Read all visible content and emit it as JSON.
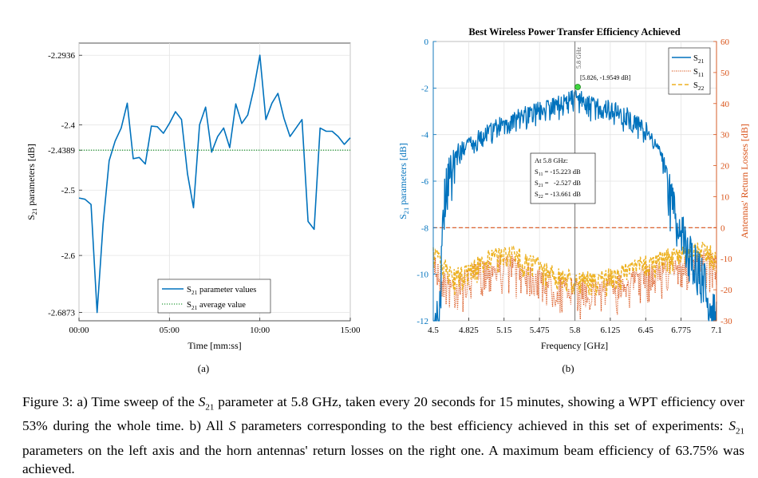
{
  "chart_data": [
    {
      "type": "line",
      "panel_label": "(a)",
      "title": "",
      "xlabel": "Time [mm:ss]",
      "ylabel_main": "S",
      "ylabel_sub": "21",
      "ylabel_tail": " parameters [dB]",
      "xlim": [
        0,
        15
      ],
      "ylim": [
        -2.6873,
        -2.2936
      ],
      "x_ticks": [
        {
          "v": 0,
          "label": "00:00"
        },
        {
          "v": 5,
          "label": "05:00"
        },
        {
          "v": 10,
          "label": "10:00"
        },
        {
          "v": 15,
          "label": "15:00"
        }
      ],
      "y_ticks": [
        {
          "v": -2.2936,
          "label": "-2.2936"
        },
        {
          "v": -2.4,
          "label": "-2.4"
        },
        {
          "v": -2.4389,
          "label": "-2.4389"
        },
        {
          "v": -2.5,
          "label": "-2.5"
        },
        {
          "v": -2.6,
          "label": "-2.6"
        },
        {
          "v": -2.6873,
          "label": "-2.6873"
        }
      ],
      "grid": true,
      "legend_position": "bottom-right",
      "series": [
        {
          "name_main": "S",
          "name_sub": "21",
          "name_tail": " parameter values",
          "color": "#0072BD",
          "style": "solid",
          "x": [
            0,
            0.333,
            0.667,
            1,
            1.333,
            1.667,
            2,
            2.333,
            2.667,
            3,
            3.333,
            3.667,
            4,
            4.333,
            4.667,
            5,
            5.333,
            5.667,
            6,
            6.333,
            6.667,
            7,
            7.333,
            7.667,
            8,
            8.333,
            8.667,
            9,
            9.333,
            9.667,
            10,
            10.333,
            10.667,
            11,
            11.333,
            11.667,
            12,
            12.333,
            12.667,
            13,
            13.333,
            13.667,
            14,
            14.333,
            14.667,
            15
          ],
          "values": [
            -2.512,
            -2.514,
            -2.522,
            -2.6873,
            -2.552,
            -2.455,
            -2.425,
            -2.405,
            -2.367,
            -2.452,
            -2.45,
            -2.46,
            -2.402,
            -2.403,
            -2.413,
            -2.398,
            -2.38,
            -2.392,
            -2.475,
            -2.527,
            -2.4,
            -2.373,
            -2.442,
            -2.418,
            -2.405,
            -2.435,
            -2.368,
            -2.398,
            -2.385,
            -2.345,
            -2.2936,
            -2.392,
            -2.367,
            -2.352,
            -2.39,
            -2.418,
            -2.405,
            -2.392,
            -2.548,
            -2.56,
            -2.405,
            -2.41,
            -2.41,
            -2.418,
            -2.43,
            -2.42
          ]
        },
        {
          "name_main": "S",
          "name_sub": "21",
          "name_tail": " average value",
          "color": "#2a9d3a",
          "style": "dotted",
          "x": [
            0,
            15
          ],
          "values": [
            -2.4389,
            -2.4389
          ]
        }
      ]
    },
    {
      "type": "line",
      "panel_label": "(b)",
      "title": "Best Wireless Power Transfer Efficiency Achieved",
      "xlabel": "Frequency [GHz]",
      "ylabel_left_main": "S",
      "ylabel_left_sub": "21",
      "ylabel_left_tail": " parameters [dB]",
      "ylabel_right": "Antennas' Return Losses [dB]",
      "xlim": [
        4.5,
        7.1
      ],
      "ylim_left": [
        -12,
        0
      ],
      "ylim_right": [
        -30,
        60
      ],
      "x_ticks": [
        4.5,
        4.825,
        5.15,
        5.475,
        5.8,
        6.125,
        6.45,
        6.775,
        7.1
      ],
      "y_ticks_left": [
        0,
        -2,
        -4,
        -6,
        -8,
        -10,
        -12
      ],
      "y_ticks_right": [
        60,
        50,
        40,
        30,
        20,
        10,
        0,
        -10,
        -20,
        -30
      ],
      "grid": true,
      "legend_position": "top-right",
      "marker_label": "5.8 GHz",
      "datatip": {
        "x": 5.826,
        "y": -1.9549,
        "label": "[5.826, -1.9549 dB]"
      },
      "annotation": {
        "heading": "At 5.8 GHz:",
        "rows": [
          {
            "main": "S",
            "sub": "11",
            "val": "= -15.223 dB"
          },
          {
            "main": "S",
            "sub": "21",
            "val": "=   -2.527 dB"
          },
          {
            "main": "S",
            "sub": "22",
            "val": "= -13.661 dB"
          }
        ]
      },
      "series": [
        {
          "name_main": "S",
          "name_sub": "21",
          "color": "#0072BD",
          "style": "solid",
          "axis": "left",
          "envelope_x": [
            4.5,
            4.56,
            4.6,
            4.65,
            4.7,
            4.75,
            4.8,
            4.9,
            5.0,
            5.1,
            5.2,
            5.3,
            5.4,
            5.5,
            5.6,
            5.7,
            5.8,
            5.9,
            6.0,
            6.1,
            6.2,
            6.3,
            6.4,
            6.5,
            6.6,
            6.7,
            6.8,
            6.9,
            7.0,
            7.05,
            7.1
          ],
          "envelope_y": [
            -12,
            -10.5,
            -6,
            -4.8,
            -4.6,
            -4.4,
            -4.2,
            -3.9,
            -3.6,
            -3.35,
            -3.1,
            -2.9,
            -2.7,
            -2.6,
            -2.45,
            -2.35,
            -2.05,
            -2.4,
            -2.5,
            -2.6,
            -2.75,
            -3.0,
            -3.3,
            -3.8,
            -4.7,
            -6.3,
            -7.6,
            -8.6,
            -9.6,
            -10.5,
            -11
          ]
        },
        {
          "name_main": "S",
          "name_sub": "11",
          "color": "#d95319",
          "style": "dotted",
          "axis": "right",
          "envelope_x": [
            4.5,
            4.6,
            4.7,
            4.8,
            5.0,
            5.2,
            5.4,
            5.6,
            5.8,
            6.0,
            6.2,
            6.4,
            6.6,
            6.8,
            7.0,
            7.1
          ],
          "envelope_y": [
            -8,
            -14,
            -16,
            -14,
            -10,
            -9,
            -12,
            -15,
            -17,
            -17,
            -15,
            -13,
            -11,
            -9,
            -8,
            -10
          ]
        },
        {
          "name_main": "S",
          "name_sub": "22",
          "color": "#EDB120",
          "style": "dashed",
          "axis": "right",
          "envelope_x": [
            4.5,
            4.6,
            4.7,
            4.8,
            5.0,
            5.2,
            5.4,
            5.6,
            5.8,
            6.0,
            6.2,
            6.4,
            6.6,
            6.8,
            7.0,
            7.1
          ],
          "envelope_y": [
            -6,
            -10,
            -14,
            -12,
            -8,
            -6,
            -9,
            -13,
            -15,
            -15,
            -13,
            -10,
            -8,
            -6,
            -5,
            -8
          ]
        }
      ],
      "threshold_line": {
        "axis": "right",
        "value": 0,
        "color": "#d95319"
      }
    }
  ],
  "caption": {
    "prefix": "Figure 3: a) Time sweep of the ",
    "sym1": "S",
    "sub1": "21",
    "mid1": " parameter at 5.8 GHz, taken every 20 seconds for 15 minutes, showing a WPT efficiency over 53% during the whole time. b) All ",
    "sym2": "S",
    "mid2": " parameters corresponding to the best efficiency achieved in this set of experiments: ",
    "sym3": "S",
    "sub3": "21",
    "suffix": " parameters on the left axis and the horn antennas' return losses on the right one. A maximum beam efficiency of 63.75% was achieved."
  }
}
